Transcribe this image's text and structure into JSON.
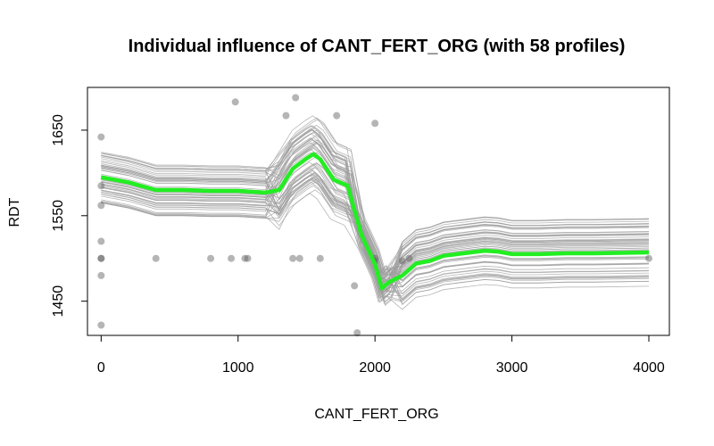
{
  "chart_data": {
    "type": "line",
    "title": "Individual influence of CANT_FERT_ORG (with 58 profiles)",
    "xlabel": "CANT_FERT_ORG",
    "ylabel": "RDT",
    "xlim": [
      -100,
      4150
    ],
    "ylim": [
      1410,
      1700
    ],
    "x_ticks": [
      0,
      1000,
      2000,
      3000,
      4000
    ],
    "y_ticks": [
      1450,
      1550,
      1650
    ],
    "grid": false,
    "legend": "none",
    "profile_count": 58,
    "profile_color": "#9e9e9e",
    "mean_color": "#22ee22",
    "point_color": "#5a5a5a",
    "x": [
      0,
      200,
      400,
      600,
      800,
      1000,
      1100,
      1200,
      1300,
      1400,
      1500,
      1550,
      1600,
      1700,
      1800,
      1900,
      2000,
      2050,
      2100,
      2200,
      2300,
      2400,
      2500,
      2600,
      2700,
      2800,
      2900,
      3000,
      3200,
      3400,
      3600,
      4000
    ],
    "series": [
      {
        "values": [
          1595,
          1589,
          1580,
          1580,
          1579,
          1579,
          1578,
          1577,
          1580,
          1605,
          1617,
          1622,
          1616,
          1592,
          1585,
          1528,
          1493,
          1465,
          1472,
          1480,
          1494,
          1497,
          1503,
          1505,
          1507,
          1509,
          1508,
          1505,
          1505,
          1506,
          1506,
          1507
        ]
      }
    ],
    "scatter": [
      {
        "x": 0,
        "y": 1642
      },
      {
        "x": 0,
        "y": 1585
      },
      {
        "x": 0,
        "y": 1562
      },
      {
        "x": 0,
        "y": 1520
      },
      {
        "x": 0,
        "y": 1500
      },
      {
        "x": 0,
        "y": 1500
      },
      {
        "x": 0,
        "y": 1480
      },
      {
        "x": 0,
        "y": 1422
      },
      {
        "x": 400,
        "y": 1500
      },
      {
        "x": 800,
        "y": 1500
      },
      {
        "x": 950,
        "y": 1500
      },
      {
        "x": 980,
        "y": 1683
      },
      {
        "x": 1050,
        "y": 1500
      },
      {
        "x": 1070,
        "y": 1500
      },
      {
        "x": 1350,
        "y": 1667
      },
      {
        "x": 1400,
        "y": 1500
      },
      {
        "x": 1420,
        "y": 1688
      },
      {
        "x": 1450,
        "y": 1500
      },
      {
        "x": 1600,
        "y": 1500
      },
      {
        "x": 1720,
        "y": 1667
      },
      {
        "x": 1850,
        "y": 1468
      },
      {
        "x": 1870,
        "y": 1413
      },
      {
        "x": 2000,
        "y": 1658
      },
      {
        "x": 2000,
        "y": 1500
      },
      {
        "x": 2000,
        "y": 1497
      },
      {
        "x": 2200,
        "y": 1497
      },
      {
        "x": 2250,
        "y": 1500
      },
      {
        "x": 4000,
        "y": 1500
      }
    ]
  }
}
